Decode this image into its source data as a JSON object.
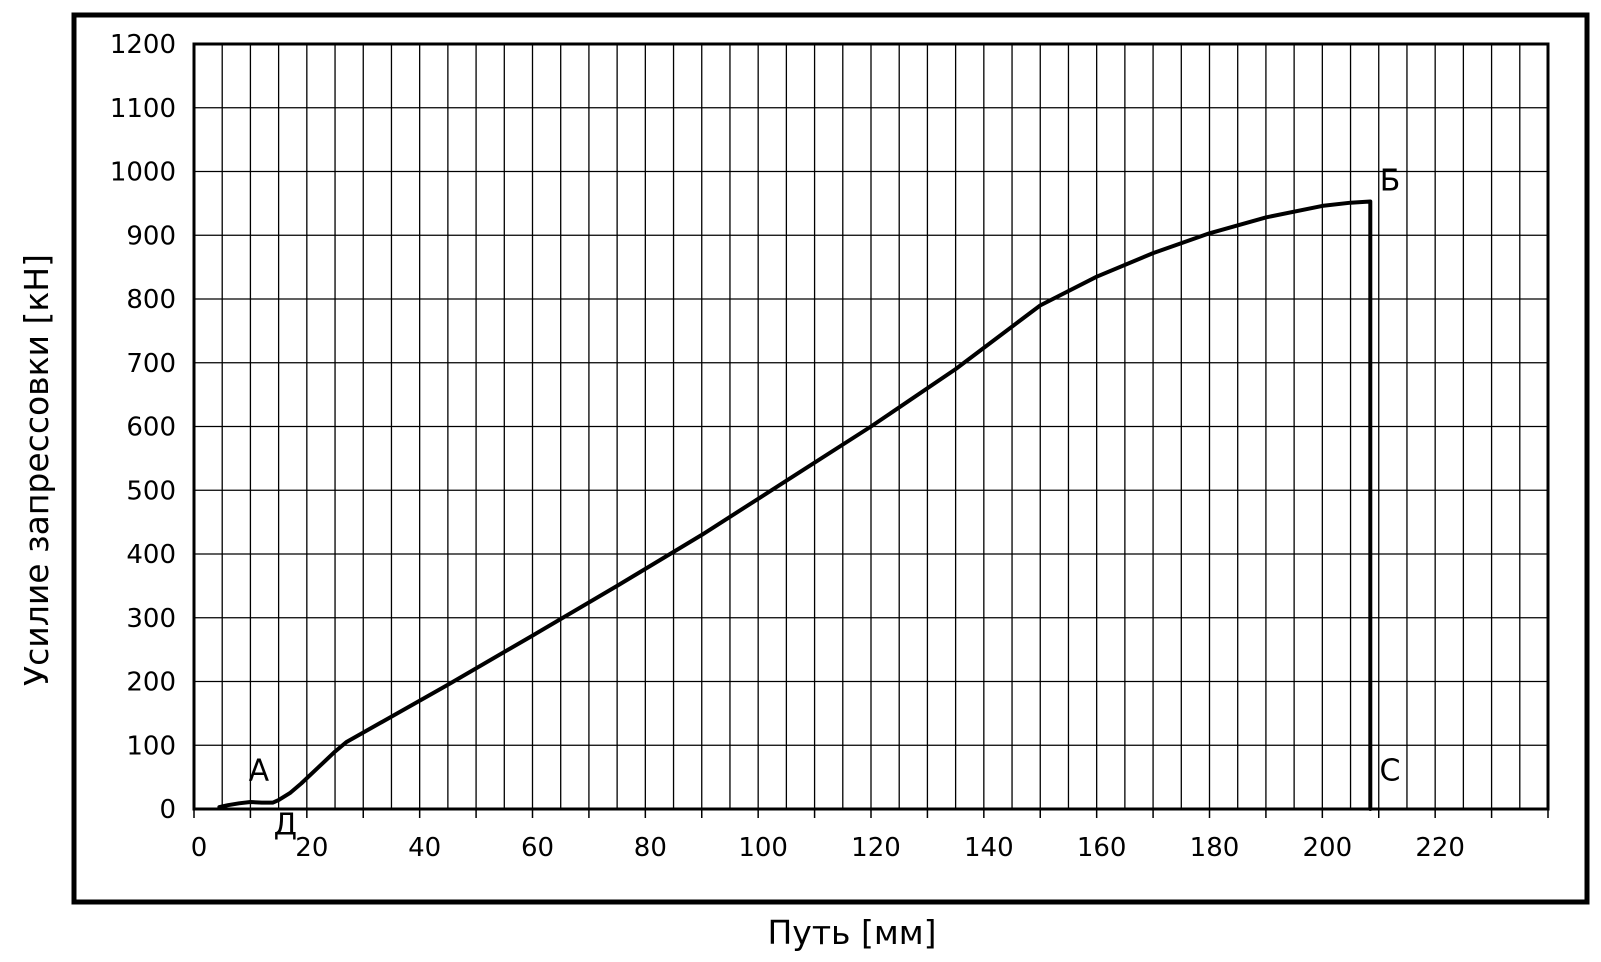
{
  "chart_data": {
    "type": "line",
    "title": "",
    "xlabel": "Путь [мм]",
    "ylabel": "Усилие запрессовки [кН]",
    "xlim": [
      0,
      240
    ],
    "ylim": [
      0,
      1200
    ],
    "x_ticks": [
      0,
      20,
      40,
      60,
      80,
      100,
      120,
      140,
      160,
      180,
      200,
      220
    ],
    "x_tick_labels": [
      "0",
      "20",
      "40",
      "60",
      "80",
      "100",
      "120",
      "140",
      "160",
      "180",
      "200",
      "220"
    ],
    "y_ticks": [
      0,
      100,
      200,
      300,
      400,
      500,
      600,
      700,
      800,
      900,
      1000,
      1100,
      1200
    ],
    "y_tick_labels": [
      "0",
      "100",
      "200",
      "300",
      "400",
      "500",
      "600",
      "700",
      "800",
      "900",
      "1000",
      "1100",
      "1200"
    ],
    "grid": true,
    "legend": "none",
    "series": [
      {
        "x": [
          4.5,
          6,
          8,
          10,
          12,
          14,
          15,
          17,
          19,
          22,
          25,
          27,
          35,
          45,
          60,
          75,
          90,
          105,
          120,
          135,
          147,
          150,
          160,
          170,
          180,
          190,
          200,
          205,
          208.5,
          208.5
        ],
        "y": [
          3,
          6,
          9,
          11,
          10,
          10,
          14,
          25,
          40,
          65,
          90,
          105,
          145,
          195,
          272,
          350,
          430,
          515,
          600,
          690,
          770,
          790,
          835,
          872,
          903,
          928,
          946,
          951,
          953,
          0
        ]
      }
    ],
    "annotations": [
      {
        "text": "А",
        "x": 11.5,
        "y": 45
      },
      {
        "text": "Д",
        "x": 16.2,
        "y": -40
      },
      {
        "text": "Б",
        "x": 212,
        "y": 970
      },
      {
        "text": "С",
        "x": 212,
        "y": 45
      }
    ]
  }
}
